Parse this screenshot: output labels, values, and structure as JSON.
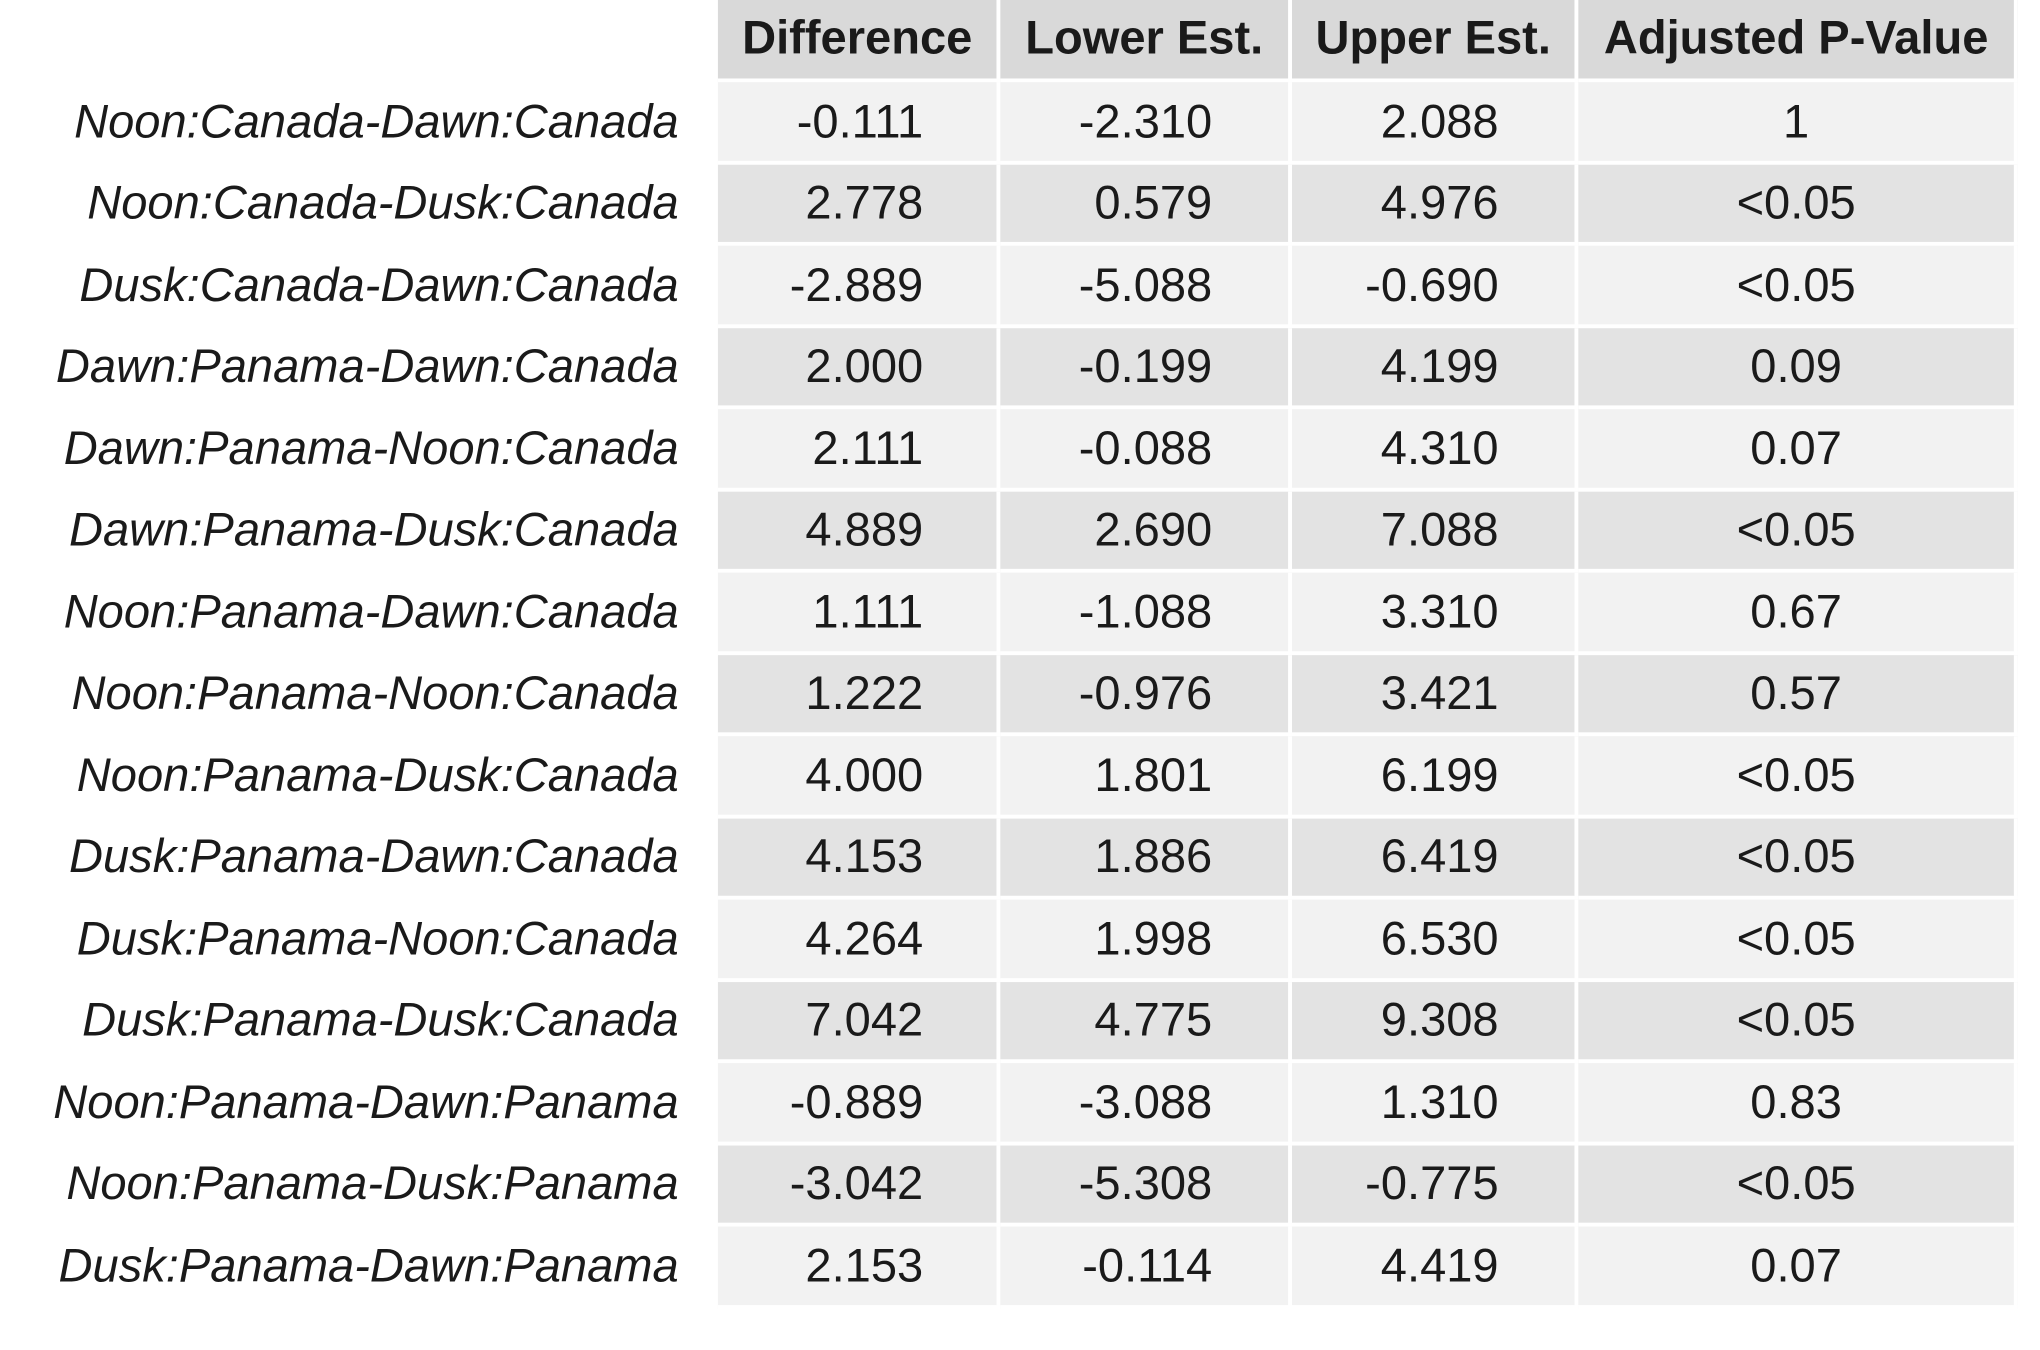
{
  "chart_data": {
    "type": "table",
    "columns": [
      "Difference",
      "Lower Est.",
      "Upper Est.",
      "Adjusted P-Value"
    ],
    "rows": [
      {
        "label": "Noon:Canada-Dawn:Canada",
        "values": [
          "-0.111",
          "-2.310",
          "2.088",
          "1"
        ]
      },
      {
        "label": "Noon:Canada-Dusk:Canada",
        "values": [
          "2.778",
          "0.579",
          "4.976",
          "<0.05"
        ]
      },
      {
        "label": "Dusk:Canada-Dawn:Canada",
        "values": [
          "-2.889",
          "-5.088",
          "-0.690",
          "<0.05"
        ]
      },
      {
        "label": "Dawn:Panama-Dawn:Canada",
        "values": [
          "2.000",
          "-0.199",
          "4.199",
          "0.09"
        ]
      },
      {
        "label": "Dawn:Panama-Noon:Canada",
        "values": [
          "2.111",
          "-0.088",
          "4.310",
          "0.07"
        ]
      },
      {
        "label": "Dawn:Panama-Dusk:Canada",
        "values": [
          "4.889",
          "2.690",
          "7.088",
          "<0.05"
        ]
      },
      {
        "label": "Noon:Panama-Dawn:Canada",
        "values": [
          "1.111",
          "-1.088",
          "3.310",
          "0.67"
        ]
      },
      {
        "label": "Noon:Panama-Noon:Canada",
        "values": [
          "1.222",
          "-0.976",
          "3.421",
          "0.57"
        ]
      },
      {
        "label": "Noon:Panama-Dusk:Canada",
        "values": [
          "4.000",
          "1.801",
          "6.199",
          "<0.05"
        ]
      },
      {
        "label": "Dusk:Panama-Dawn:Canada",
        "values": [
          "4.153",
          "1.886",
          "6.419",
          "<0.05"
        ]
      },
      {
        "label": "Dusk:Panama-Noon:Canada",
        "values": [
          "4.264",
          "1.998",
          "6.530",
          "<0.05"
        ]
      },
      {
        "label": "Dusk:Panama-Dusk:Canada",
        "values": [
          "7.042",
          "4.775",
          "9.308",
          "<0.05"
        ]
      },
      {
        "label": "Noon:Panama-Dawn:Panama",
        "values": [
          "-0.889",
          "-3.088",
          "1.310",
          "0.83"
        ]
      },
      {
        "label": "Noon:Panama-Dusk:Panama",
        "values": [
          "-3.042",
          "-5.308",
          "-0.775",
          "<0.05"
        ]
      },
      {
        "label": "Dusk:Panama-Dawn:Panama",
        "values": [
          "2.153",
          "-0.114",
          "4.419",
          "0.07"
        ]
      }
    ]
  },
  "colors": {
    "header_bg": "#d9d9d9",
    "row_odd_bg": "#f2f2f2",
    "row_even_bg": "#e3e3e3",
    "text": "#1a1a1a"
  }
}
